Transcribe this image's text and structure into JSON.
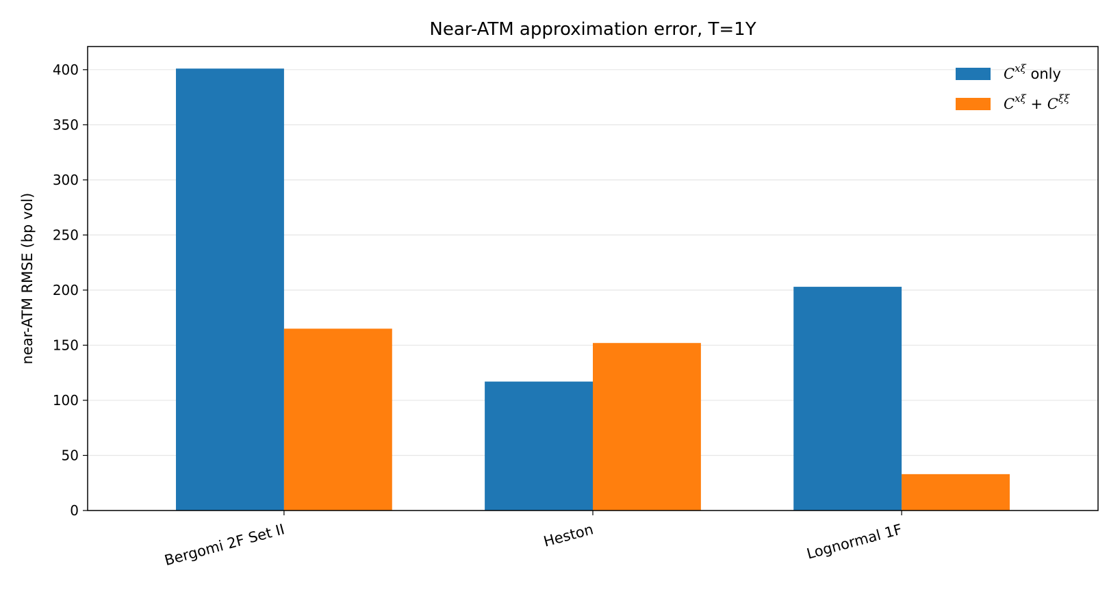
{
  "chart_data": {
    "type": "bar",
    "title": "Near-ATM approximation error, T=1Y",
    "xlabel": "",
    "ylabel": "near-ATM RMSE (bp vol)",
    "categories": [
      "Bergomi 2F Set II",
      "Heston",
      "Lognormal 1F"
    ],
    "series": [
      {
        "name": "C^{xξ} only",
        "legend": {
          "base": "C",
          "sup": "xξ",
          "rest": " only"
        },
        "color": "#1f77b4",
        "values": [
          401,
          117,
          203
        ]
      },
      {
        "name": "C^{xξ} + C^{ξξ}",
        "legend": {
          "base": "C",
          "sup": "xξ",
          "plus": " + ",
          "base2": "C",
          "sup2": "ξξ"
        },
        "color": "#ff7f0e",
        "values": [
          165,
          152,
          33
        ]
      }
    ],
    "ylim": [
      0,
      421
    ],
    "yticks": [
      0,
      50,
      100,
      150,
      200,
      250,
      300,
      350,
      400
    ],
    "grid": "y",
    "legend_position": "top-right"
  }
}
